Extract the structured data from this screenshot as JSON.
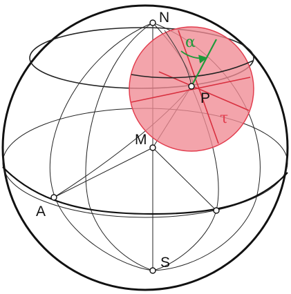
{
  "figure": {
    "labels": {
      "north": "N",
      "south": "S",
      "center": "M",
      "point_a": "A",
      "point_p": "P",
      "alpha": "α",
      "tau": "τ"
    },
    "colors": {
      "outline": "#111111",
      "disc_fill": "#ef8a94",
      "disc_stroke": "#e23d4e",
      "tangent_lines": "#d8303f",
      "alpha_marker": "#1f9a3a",
      "tau_label": "#e23d4e",
      "alpha_label": "#1f9a3a"
    }
  }
}
